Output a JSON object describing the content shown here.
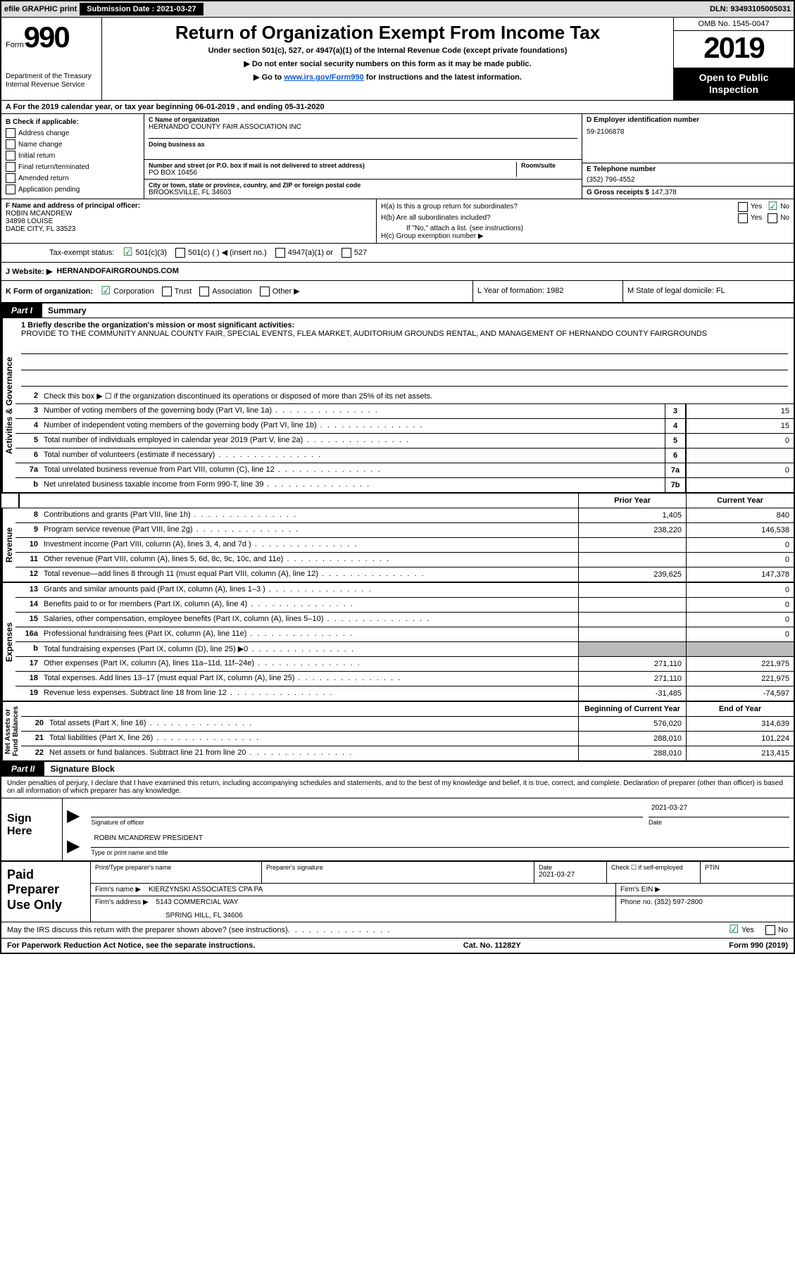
{
  "topbar": {
    "efile": "efile GRAPHIC print",
    "submission_label": "Submission Date :",
    "submission_date": "2021-03-27",
    "dln": "DLN: 93493105005031"
  },
  "header": {
    "form_word": "Form",
    "form_number": "990",
    "dept": "Department of the Treasury\nInternal Revenue Service",
    "title": "Return of Organization Exempt From Income Tax",
    "subtitle": "Under section 501(c), 527, or 4947(a)(1) of the Internal Revenue Code (except private foundations)",
    "note1": "▶ Do not enter social security numbers on this form as it may be made public.",
    "note2_prefix": "▶ Go to ",
    "note2_link": "www.irs.gov/Form990",
    "note2_suffix": " for instructions and the latest information.",
    "omb": "OMB No. 1545-0047",
    "year": "2019",
    "open": "Open to Public\nInspection"
  },
  "section_a": "A For the 2019 calendar year, or tax year beginning 06-01-2019   , and ending 05-31-2020",
  "box_b": {
    "heading": "B Check if applicable:",
    "items": [
      "Address change",
      "Name change",
      "Initial return",
      "Final return/terminated",
      "Amended return",
      "Application pending"
    ]
  },
  "box_c": {
    "name_label": "C Name of organization",
    "name": "HERNANDO COUNTY FAIR ASSOCIATION INC",
    "dba_label": "Doing business as",
    "dba": "",
    "street_label": "Number and street (or P.O. box if mail is not delivered to street address)",
    "room_label": "Room/suite",
    "street": "PO BOX 10456",
    "city_label": "City or town, state or province, country, and ZIP or foreign postal code",
    "city": "BROOKSVILLE, FL  34603"
  },
  "box_d": {
    "label": "D Employer identification number",
    "value": "59-2106878"
  },
  "box_e": {
    "label": "E Telephone number",
    "value": "(352) 796-4552"
  },
  "box_g": {
    "label": "G Gross receipts $",
    "value": "147,378"
  },
  "box_f": {
    "label": "F  Name and address of principal officer:",
    "name": "ROBIN MCANDREW",
    "street": "34898 LOUISE",
    "city": "DADE CITY, FL  33523"
  },
  "box_h": {
    "a": "H(a)  Is this a group return for subordinates?",
    "a_yes": "Yes",
    "a_no": "No",
    "b": "H(b)  Are all subordinates included?",
    "b_yes": "Yes",
    "b_no": "No",
    "b_note": "If \"No,\" attach a list. (see instructions)",
    "c": "H(c)  Group exemption number ▶"
  },
  "tax_exempt": {
    "label": "Tax-exempt status:",
    "opt1": "501(c)(3)",
    "opt2": "501(c) (  ) ◀ (insert no.)",
    "opt3": "4947(a)(1) or",
    "opt4": "527"
  },
  "website": {
    "label": "J   Website: ▶",
    "value": "HERNANDOFAIRGROUNDS.COM"
  },
  "row_k": {
    "k": "K Form of organization:",
    "corp": "Corporation",
    "trust": "Trust",
    "assoc": "Association",
    "other": "Other ▶",
    "l": "L Year of formation: 1982",
    "m": "M State of legal domicile: FL"
  },
  "part1": {
    "tab": "Part I",
    "title": "Summary"
  },
  "governance": {
    "vert": "Activities & Governance",
    "l1_label": "1 Briefly describe the organization's mission or most significant activities:",
    "l1_text": "PROVIDE TO THE COMMUNITY ANNUAL COUNTY FAIR, SPECIAL EVENTS, FLEA MARKET, AUDITORIUM GROUNDS RENTAL, AND MANAGEMENT OF HERNANDO COUNTY FAIRGROUNDS",
    "l2": "Check this box ▶ ☐  if the organization discontinued its operations or disposed of more than 25% of its net assets.",
    "rows": [
      {
        "n": "3",
        "t": "Number of voting members of the governing body (Part VI, line 1a)",
        "bn": "3",
        "v": "15"
      },
      {
        "n": "4",
        "t": "Number of independent voting members of the governing body (Part VI, line 1b)",
        "bn": "4",
        "v": "15"
      },
      {
        "n": "5",
        "t": "Total number of individuals employed in calendar year 2019 (Part V, line 2a)",
        "bn": "5",
        "v": "0"
      },
      {
        "n": "6",
        "t": "Total number of volunteers (estimate if necessary)",
        "bn": "6",
        "v": ""
      },
      {
        "n": "7a",
        "t": "Total unrelated business revenue from Part VIII, column (C), line 12",
        "bn": "7a",
        "v": "0"
      },
      {
        "n": "b",
        "t": "Net unrelated business taxable income from Form 990-T, line 39",
        "bn": "7b",
        "v": ""
      }
    ]
  },
  "columns": {
    "prior": "Prior Year",
    "current": "Current Year"
  },
  "revenue": {
    "vert": "Revenue",
    "rows": [
      {
        "n": "8",
        "t": "Contributions and grants (Part VIII, line 1h)",
        "p": "1,405",
        "c": "840"
      },
      {
        "n": "9",
        "t": "Program service revenue (Part VIII, line 2g)",
        "p": "238,220",
        "c": "146,538"
      },
      {
        "n": "10",
        "t": "Investment income (Part VIII, column (A), lines 3, 4, and 7d )",
        "p": "",
        "c": "0"
      },
      {
        "n": "11",
        "t": "Other revenue (Part VIII, column (A), lines 5, 6d, 8c, 9c, 10c, and 11e)",
        "p": "",
        "c": "0"
      },
      {
        "n": "12",
        "t": "Total revenue—add lines 8 through 11 (must equal Part VIII, column (A), line 12)",
        "p": "239,625",
        "c": "147,378"
      }
    ]
  },
  "expenses": {
    "vert": "Expenses",
    "rows": [
      {
        "n": "13",
        "t": "Grants and similar amounts paid (Part IX, column (A), lines 1–3 )",
        "p": "",
        "c": "0"
      },
      {
        "n": "14",
        "t": "Benefits paid to or for members (Part IX, column (A), line 4)",
        "p": "",
        "c": "0"
      },
      {
        "n": "15",
        "t": "Salaries, other compensation, employee benefits (Part IX, column (A), lines 5–10)",
        "p": "",
        "c": "0"
      },
      {
        "n": "16a",
        "t": "Professional fundraising fees (Part IX, column (A), line 11e)",
        "p": "",
        "c": "0"
      },
      {
        "n": "b",
        "t": "Total fundraising expenses (Part IX, column (D), line 25) ▶0",
        "p": "GREY",
        "c": "GREY"
      },
      {
        "n": "17",
        "t": "Other expenses (Part IX, column (A), lines 11a–11d, 11f–24e)",
        "p": "271,110",
        "c": "221,975"
      },
      {
        "n": "18",
        "t": "Total expenses. Add lines 13–17 (must equal Part IX, column (A), line 25)",
        "p": "271,110",
        "c": "221,975"
      },
      {
        "n": "19",
        "t": "Revenue less expenses. Subtract line 18 from line 12",
        "p": "-31,485",
        "c": "-74,597"
      }
    ]
  },
  "netassets": {
    "vert": "Net Assets or\nFund Balances",
    "col_begin": "Beginning of Current Year",
    "col_end": "End of Year",
    "rows": [
      {
        "n": "20",
        "t": "Total assets (Part X, line 16)",
        "p": "576,020",
        "c": "314,639"
      },
      {
        "n": "21",
        "t": "Total liabilities (Part X, line 26)",
        "p": "288,010",
        "c": "101,224"
      },
      {
        "n": "22",
        "t": "Net assets or fund balances. Subtract line 21 from line 20",
        "p": "288,010",
        "c": "213,415"
      }
    ]
  },
  "part2": {
    "tab": "Part II",
    "title": "Signature Block"
  },
  "declaration": "Under penalties of perjury, I declare that I have examined this return, including accompanying schedules and statements, and to the best of my knowledge and belief, it is true, correct, and complete. Declaration of preparer (other than officer) is based on all information of which preparer has any knowledge.",
  "sign": {
    "label": "Sign Here",
    "sig_officer": "Signature of officer",
    "date_label": "Date",
    "date": "2021-03-27",
    "name": "ROBIN MCANDREW  PRESIDENT",
    "name_label": "Type or print name and title"
  },
  "paid": {
    "label": "Paid Preparer Use Only",
    "print_name_label": "Print/Type preparer's name",
    "sig_label": "Preparer's signature",
    "date_label": "Date",
    "date": "2021-03-27",
    "check_label": "Check ☐ if self-employed",
    "ptin_label": "PTIN",
    "firm_name_label": "Firm's name    ▶",
    "firm_name": "KIERZYNSKI ASSOCIATES CPA PA",
    "firm_ein_label": "Firm's EIN ▶",
    "firm_addr_label": "Firm's address ▶",
    "firm_addr1": "5143 COMMERCIAL WAY",
    "firm_addr2": "SPRING HILL, FL  34606",
    "phone_label": "Phone no.",
    "phone": "(352) 597-2800"
  },
  "discuss": {
    "text": "May the IRS discuss this return with the preparer shown above? (see instructions)",
    "yes": "Yes",
    "no": "No"
  },
  "footer": {
    "left": "For Paperwork Reduction Act Notice, see the separate instructions.",
    "mid": "Cat. No. 11282Y",
    "right": "Form 990 (2019)"
  }
}
